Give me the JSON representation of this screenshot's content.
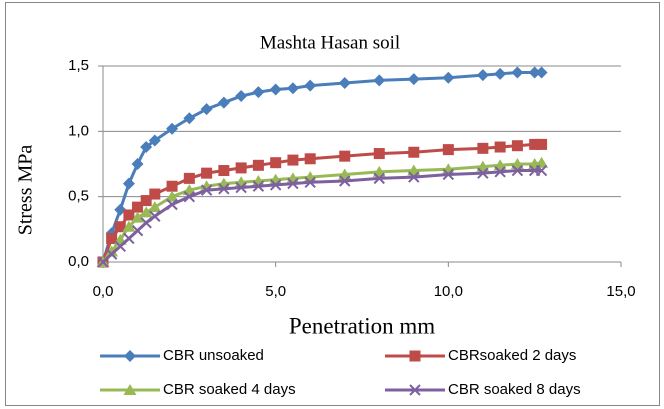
{
  "chart_data": {
    "type": "line",
    "title": "Mashta Hasan soil",
    "xlabel": "Penetration mm",
    "ylabel": "Stress MPa",
    "x": [
      0,
      0.25,
      0.5,
      0.75,
      1,
      1.25,
      1.5,
      2,
      2.5,
      3,
      3.5,
      4,
      4.5,
      5,
      5.5,
      6,
      7,
      8,
      9,
      10,
      11,
      11.5,
      12,
      12.5,
      12.7
    ],
    "series": [
      {
        "name": "CBR unsoaked",
        "color": "#4a7ebb",
        "marker": "diamond",
        "values": [
          0,
          0.22,
          0.4,
          0.6,
          0.75,
          0.88,
          0.93,
          1.02,
          1.1,
          1.17,
          1.22,
          1.27,
          1.3,
          1.32,
          1.33,
          1.35,
          1.37,
          1.39,
          1.4,
          1.41,
          1.43,
          1.44,
          1.45,
          1.45,
          1.45
        ]
      },
      {
        "name": "CBRsoaked 2 days",
        "color": "#be4b48",
        "marker": "square",
        "values": [
          0,
          0.18,
          0.27,
          0.36,
          0.42,
          0.47,
          0.52,
          0.58,
          0.64,
          0.68,
          0.7,
          0.72,
          0.74,
          0.76,
          0.78,
          0.79,
          0.81,
          0.83,
          0.84,
          0.86,
          0.87,
          0.88,
          0.89,
          0.9,
          0.9
        ]
      },
      {
        "name": "CBR soaked 4 days",
        "color": "#98b954",
        "marker": "triangle",
        "values": [
          0,
          0.08,
          0.17,
          0.27,
          0.34,
          0.38,
          0.42,
          0.5,
          0.55,
          0.58,
          0.6,
          0.61,
          0.62,
          0.63,
          0.64,
          0.65,
          0.67,
          0.69,
          0.7,
          0.71,
          0.73,
          0.74,
          0.75,
          0.75,
          0.76
        ]
      },
      {
        "name": "CBR soaked 8 days",
        "color": "#7d60a0",
        "marker": "x",
        "values": [
          0,
          0.06,
          0.12,
          0.18,
          0.24,
          0.3,
          0.35,
          0.44,
          0.5,
          0.55,
          0.56,
          0.57,
          0.58,
          0.59,
          0.6,
          0.61,
          0.62,
          0.64,
          0.65,
          0.67,
          0.68,
          0.69,
          0.7,
          0.7,
          0.7
        ]
      }
    ],
    "xlim": [
      0,
      15
    ],
    "xticks": [
      {
        "value": 0,
        "label": "0,0"
      },
      {
        "value": 5,
        "label": "5,0"
      },
      {
        "value": 10,
        "label": "10,0"
      },
      {
        "value": 15,
        "label": "15,0"
      }
    ],
    "ylim": [
      0,
      1.5
    ],
    "yticks": [
      {
        "value": 0,
        "label": "0,0"
      },
      {
        "value": 0.5,
        "label": "0,5"
      },
      {
        "value": 1,
        "label": "1,0"
      },
      {
        "value": 1.5,
        "label": "1,5"
      }
    ],
    "grid": true,
    "legend": "bottom"
  }
}
